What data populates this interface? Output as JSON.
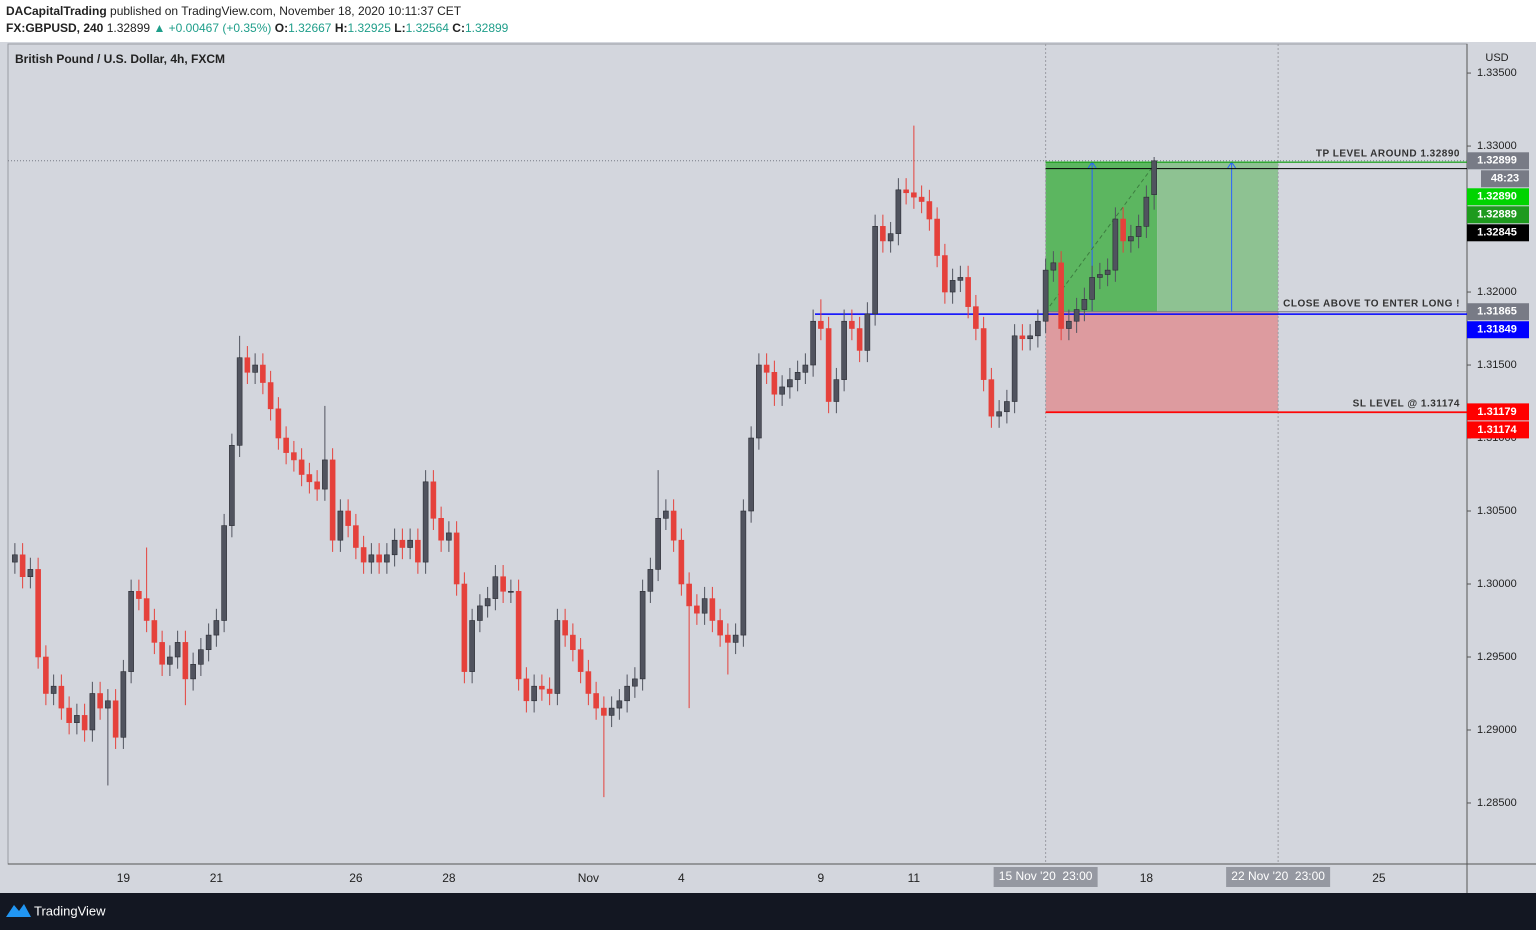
{
  "chart_data": {
    "type": "candlestick",
    "title": "British Pound / U.S. Dollar, 4h, FXCM",
    "y_unit": "USD",
    "footer": "TradingView",
    "header": {
      "author": "DACapitalTrading",
      "published": "published on TradingView.com, November 18, 2020 10:11:37 CET",
      "symbol": "FX:GBPUSD, 240",
      "change": "▲ +0.00467 (+0.35%)",
      "ohlc_keys": [
        "O:",
        "H:",
        "L:",
        "C:"
      ]
    },
    "up_color": "#50535e",
    "down_color": "#e5413b",
    "grid": false,
    "ylim": [
      1.28082,
      1.33699
    ],
    "yticks": [
      {
        "value": 1.335,
        "label": "1.33500"
      },
      {
        "value": 1.33,
        "label": "1.33000"
      },
      {
        "value": 1.325,
        "label": "1.32500"
      },
      {
        "value": 1.32,
        "label": "1.32000"
      },
      {
        "value": 1.315,
        "label": "1.31500"
      },
      {
        "value": 1.31,
        "label": "1.31000"
      },
      {
        "value": 1.305,
        "label": "1.30500"
      },
      {
        "value": 1.3,
        "label": "1.30000"
      },
      {
        "value": 1.295,
        "label": "1.29500"
      },
      {
        "value": 1.29,
        "label": "1.29000"
      },
      {
        "value": 1.285,
        "label": "1.28500"
      }
    ],
    "categories": [
      null,
      null,
      null,
      null,
      null,
      null,
      null,
      null,
      null,
      null,
      null,
      null,
      null,
      null,
      "19",
      null,
      null,
      null,
      null,
      null,
      null,
      null,
      null,
      null,
      null,
      null,
      "21",
      null,
      null,
      null,
      null,
      null,
      null,
      null,
      null,
      null,
      null,
      null,
      null,
      null,
      null,
      null,
      null,
      null,
      "26",
      null,
      null,
      null,
      null,
      null,
      null,
      null,
      null,
      null,
      null,
      null,
      "28",
      null,
      null,
      null,
      null,
      null,
      null,
      null,
      null,
      null,
      null,
      null,
      null,
      null,
      null,
      null,
      null,
      null,
      "Nov",
      null,
      null,
      null,
      null,
      null,
      null,
      null,
      null,
      null,
      null,
      null,
      "4",
      null,
      null,
      null,
      null,
      null,
      null,
      null,
      null,
      null,
      null,
      null,
      null,
      null,
      null,
      null,
      null,
      null,
      "9",
      null,
      null,
      null,
      null,
      null,
      null,
      null,
      null,
      null,
      null,
      null,
      "11",
      null,
      null,
      null,
      null,
      null,
      null,
      null,
      null,
      null,
      null,
      null,
      null,
      null,
      null,
      null,
      null,
      "15 Nov '20  23:00",
      null,
      null,
      null,
      null,
      null,
      null,
      null,
      null,
      null,
      null,
      null,
      null,
      "18",
      null,
      null,
      null,
      null,
      null,
      null,
      null,
      null,
      null,
      null,
      null,
      null,
      null,
      null,
      null,
      null,
      "22 Nov '20  23:00",
      null,
      null,
      null,
      null,
      null,
      null,
      null,
      null,
      null,
      null,
      null,
      null,
      "25"
    ],
    "open": [
      1.3015,
      1.302,
      1.3005,
      1.301,
      1.295,
      1.2925,
      1.293,
      1.2915,
      1.2905,
      1.291,
      1.29,
      1.2925,
      1.2915,
      1.292,
      1.2895,
      1.294,
      1.2995,
      1.299,
      1.2975,
      1.296,
      1.2945,
      1.295,
      1.296,
      1.2935,
      1.2945,
      1.2955,
      1.2965,
      1.2975,
      1.304,
      1.3095,
      1.3155,
      1.3145,
      1.315,
      1.3138,
      1.312,
      1.31,
      1.309,
      1.3085,
      1.3075,
      1.307,
      1.3065,
      1.3085,
      1.303,
      1.305,
      1.304,
      1.3025,
      1.3015,
      1.302,
      1.3015,
      1.302,
      1.303,
      1.3025,
      1.303,
      1.3015,
      1.307,
      1.3045,
      1.303,
      1.3035,
      1.3,
      1.294,
      1.2975,
      1.2985,
      1.299,
      1.3005,
      1.2995,
      1.2995,
      1.2935,
      1.292,
      1.293,
      1.2928,
      1.2925,
      1.2975,
      1.2965,
      1.2955,
      1.294,
      1.2925,
      1.2915,
      1.291,
      1.2915,
      1.292,
      1.293,
      1.2935,
      1.2995,
      1.301,
      1.3045,
      1.305,
      1.303,
      1.3,
      1.2985,
      1.298,
      1.299,
      1.2975,
      1.2965,
      1.296,
      1.2965,
      1.305,
      1.31,
      1.315,
      1.3145,
      1.313,
      1.3135,
      1.314,
      1.3145,
      1.315,
      1.318,
      1.3175,
      1.3125,
      1.314,
      1.318,
      1.3175,
      1.316,
      1.3185,
      1.3245,
      1.3235,
      1.324,
      1.327,
      1.3268,
      1.3265,
      1.3262,
      1.325,
      1.3225,
      1.32,
      1.3208,
      1.321,
      1.319,
      1.3175,
      1.314,
      1.3115,
      1.3118,
      1.3125,
      1.317,
      1.3168,
      1.317,
      1.318,
      1.3215,
      1.322,
      1.3175,
      1.318,
      1.3188,
      1.3195,
      1.321,
      1.3212,
      1.3215,
      1.325,
      1.3235,
      1.3238,
      1.3245,
      1.32667,
      null,
      null,
      null,
      null,
      null,
      null,
      null,
      null,
      null,
      null,
      null,
      null,
      null,
      null,
      null,
      null,
      null,
      null,
      null,
      null,
      null,
      null,
      null,
      null,
      null,
      null,
      null,
      null,
      null
    ],
    "high": [
      1.3028,
      1.3028,
      1.3018,
      1.3018,
      1.2958,
      1.2938,
      1.2938,
      1.2923,
      1.2918,
      1.2918,
      1.2933,
      1.2933,
      1.2928,
      1.2928,
      1.2948,
      1.3003,
      1.3003,
      1.3025,
      1.2983,
      1.2968,
      1.2958,
      1.2968,
      1.2968,
      1.2953,
      1.2963,
      1.2973,
      1.2983,
      1.3048,
      1.3103,
      1.317,
      1.3163,
      1.3158,
      1.3158,
      1.3146,
      1.3128,
      1.3108,
      1.3098,
      1.3093,
      1.3083,
      1.3078,
      1.3122,
      1.3093,
      1.3058,
      1.3058,
      1.3048,
      1.3033,
      1.3028,
      1.3028,
      1.3028,
      1.3038,
      1.3038,
      1.3038,
      1.3038,
      1.3078,
      1.3078,
      1.3053,
      1.3043,
      1.3043,
      1.3008,
      1.2983,
      1.2993,
      1.2998,
      1.3013,
      1.3013,
      1.3003,
      1.3003,
      1.2943,
      1.2938,
      1.2938,
      1.2936,
      1.2983,
      1.2983,
      1.2973,
      1.2963,
      1.2948,
      1.2933,
      1.2923,
      1.2923,
      1.2928,
      1.2938,
      1.2943,
      1.3003,
      1.3018,
      1.3078,
      1.3058,
      1.3058,
      1.3038,
      1.3008,
      1.2993,
      1.2998,
      1.2998,
      1.2983,
      1.2973,
      1.2973,
      1.3058,
      1.3108,
      1.3158,
      1.3158,
      1.3153,
      1.3143,
      1.3148,
      1.3153,
      1.3158,
      1.3188,
      1.3195,
      1.3183,
      1.3148,
      1.3188,
      1.3188,
      1.3183,
      1.3193,
      1.3253,
      1.3253,
      1.3248,
      1.3278,
      1.3278,
      1.3314,
      1.3273,
      1.327,
      1.3258,
      1.3233,
      1.3216,
      1.3218,
      1.3218,
      1.3198,
      1.3183,
      1.3148,
      1.3126,
      1.3133,
      1.3178,
      1.3178,
      1.3178,
      1.3188,
      1.3223,
      1.3228,
      1.3228,
      1.3188,
      1.3196,
      1.3203,
      1.3218,
      1.322,
      1.3223,
      1.3258,
      1.3258,
      1.3246,
      1.3253,
      1.3273,
      1.32925,
      null,
      null,
      null,
      null,
      null,
      null,
      null,
      null,
      null,
      null,
      null,
      null,
      null,
      null,
      null,
      null,
      null,
      null,
      null,
      null,
      null,
      null,
      null,
      null,
      null,
      null,
      null,
      null,
      null
    ],
    "low": [
      1.3007,
      1.2997,
      1.2997,
      1.2942,
      1.2917,
      1.2917,
      1.2907,
      1.2897,
      1.2897,
      1.2892,
      1.2892,
      1.2907,
      1.2862,
      1.2887,
      1.2887,
      1.2932,
      1.2982,
      1.2967,
      1.2952,
      1.2937,
      1.2937,
      1.2942,
      1.2917,
      1.2927,
      1.2937,
      1.2947,
      1.2957,
      1.2967,
      1.3032,
      1.3087,
      1.3137,
      1.3137,
      1.313,
      1.3112,
      1.3092,
      1.3082,
      1.3077,
      1.3067,
      1.3062,
      1.3057,
      1.3057,
      1.3022,
      1.3022,
      1.3032,
      1.3017,
      1.3007,
      1.3007,
      1.3007,
      1.3007,
      1.3012,
      1.3017,
      1.3017,
      1.3007,
      1.3007,
      1.3037,
      1.3022,
      1.3022,
      1.2992,
      1.2932,
      1.2932,
      1.2967,
      1.2977,
      1.2982,
      1.2987,
      1.2987,
      1.2927,
      1.2912,
      1.2912,
      1.292,
      1.2917,
      1.2917,
      1.2957,
      1.2947,
      1.2932,
      1.2917,
      1.2907,
      1.2854,
      1.2902,
      1.2907,
      1.2912,
      1.2922,
      1.2927,
      1.2987,
      1.3002,
      1.3037,
      1.3022,
      1.2992,
      1.2915,
      1.2972,
      1.2972,
      1.2967,
      1.2957,
      1.2938,
      1.2952,
      1.2957,
      1.3042,
      1.3092,
      1.3137,
      1.3122,
      1.3122,
      1.3127,
      1.3132,
      1.3137,
      1.3142,
      1.3167,
      1.3117,
      1.3117,
      1.3132,
      1.3167,
      1.3152,
      1.3152,
      1.3177,
      1.3227,
      1.3227,
      1.3232,
      1.326,
      1.3257,
      1.3254,
      1.3242,
      1.3217,
      1.3192,
      1.3192,
      1.32,
      1.3182,
      1.3167,
      1.3132,
      1.3107,
      1.3107,
      1.311,
      1.3117,
      1.316,
      1.316,
      1.3162,
      1.3172,
      1.3207,
      1.3167,
      1.3167,
      1.3172,
      1.318,
      1.3187,
      1.3202,
      1.3204,
      1.3207,
      1.3227,
      1.3227,
      1.323,
      1.3237,
      1.32564,
      null,
      null,
      null,
      null,
      null,
      null,
      null,
      null,
      null,
      null,
      null,
      null,
      null,
      null,
      null,
      null,
      null,
      null,
      null,
      null,
      null,
      null,
      null,
      null,
      null,
      null,
      null,
      null,
      null
    ],
    "close": [
      1.302,
      1.3005,
      1.301,
      1.295,
      1.2925,
      1.293,
      1.2915,
      1.2905,
      1.291,
      1.29,
      1.2925,
      1.2915,
      1.292,
      1.2895,
      1.294,
      1.2995,
      1.299,
      1.2975,
      1.296,
      1.2945,
      1.295,
      1.296,
      1.2935,
      1.2945,
      1.2955,
      1.2965,
      1.2975,
      1.304,
      1.3095,
      1.3155,
      1.3145,
      1.315,
      1.3138,
      1.312,
      1.31,
      1.309,
      1.3085,
      1.3075,
      1.307,
      1.3065,
      1.3085,
      1.303,
      1.305,
      1.304,
      1.3025,
      1.3015,
      1.302,
      1.3015,
      1.302,
      1.303,
      1.3025,
      1.303,
      1.3015,
      1.307,
      1.3045,
      1.303,
      1.3035,
      1.3,
      1.294,
      1.2975,
      1.2985,
      1.299,
      1.3005,
      1.2995,
      1.2995,
      1.2935,
      1.292,
      1.293,
      1.2928,
      1.2925,
      1.2975,
      1.2965,
      1.2955,
      1.294,
      1.2925,
      1.2915,
      1.291,
      1.2915,
      1.292,
      1.293,
      1.2935,
      1.2995,
      1.301,
      1.3045,
      1.305,
      1.303,
      1.3,
      1.2985,
      1.298,
      1.299,
      1.2975,
      1.2965,
      1.296,
      1.2965,
      1.305,
      1.31,
      1.315,
      1.3145,
      1.313,
      1.3135,
      1.314,
      1.3145,
      1.315,
      1.318,
      1.3175,
      1.3125,
      1.314,
      1.318,
      1.3175,
      1.316,
      1.3185,
      1.3245,
      1.3235,
      1.324,
      1.327,
      1.3268,
      1.3265,
      1.3262,
      1.325,
      1.3225,
      1.32,
      1.3208,
      1.321,
      1.319,
      1.3175,
      1.314,
      1.3115,
      1.3118,
      1.3125,
      1.317,
      1.3168,
      1.317,
      1.318,
      1.3215,
      1.322,
      1.3175,
      1.318,
      1.3188,
      1.3195,
      1.321,
      1.3212,
      1.3215,
      1.325,
      1.3235,
      1.3238,
      1.3245,
      1.3265,
      1.32899,
      null,
      null,
      null,
      null,
      null,
      null,
      null,
      null,
      null,
      null,
      null,
      null,
      null,
      null,
      null,
      null,
      null,
      null,
      null,
      null,
      null,
      null,
      null,
      null,
      null,
      null,
      null,
      null,
      null
    ],
    "price_tags": [
      {
        "value": 1.32899,
        "label": "1.32899",
        "color": "#787b86"
      },
      {
        "value": 1.3289,
        "label": "1.32890",
        "color": "#00d400"
      },
      {
        "value": 1.32889,
        "label": "1.32889",
        "color": "#1e9a1e"
      },
      {
        "value": 1.32845,
        "label": "1.32845",
        "color": "#000000"
      },
      {
        "value": 1.31865,
        "label": "1.31865",
        "color": "#787b86"
      },
      {
        "value": 1.31849,
        "label": "1.31849",
        "color": "#0000ff"
      },
      {
        "value": 1.31179,
        "label": "1.31179",
        "color": "#ff0000"
      },
      {
        "value": 1.31174,
        "label": "1.31174",
        "color": "#ff0000"
      }
    ],
    "countdown": "48:23",
    "annotations": [
      "TP LEVEL AROUND 1.32890",
      "CLOSE ABOVE TO ENTER LONG !",
      "SL LEVEL @ 1.31174"
    ]
  }
}
